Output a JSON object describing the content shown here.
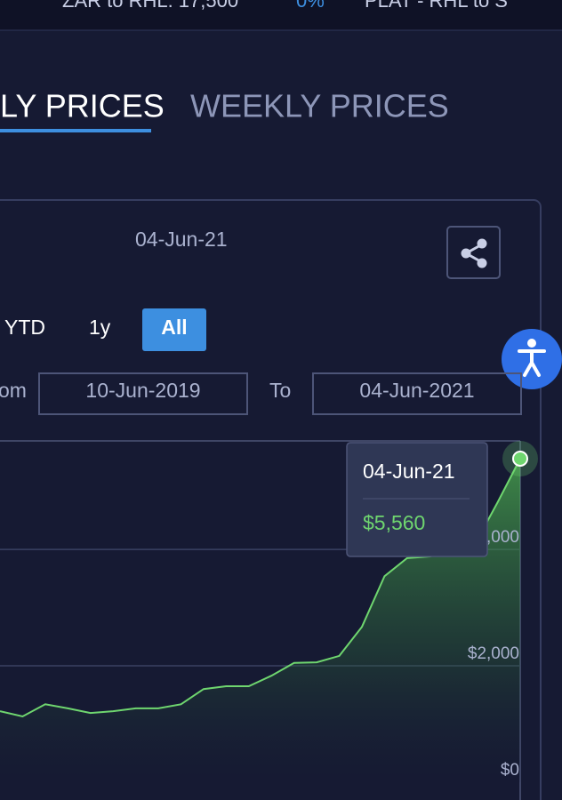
{
  "ticker": [
    "ZAR to RHL: 17,500",
    "0%",
    "PLAT - RHL to S"
  ],
  "tabs": [
    "LY PRICES",
    "WEEKLY PRICES"
  ],
  "panel": {
    "date": "04-Jun-21",
    "ranges": [
      "YTD",
      "1y",
      "All"
    ],
    "from_label": "om",
    "from": "10-Jun-2019",
    "to_label": "To",
    "to": "04-Jun-2021"
  },
  "chart_data": {
    "type": "area",
    "color": "#6fd66f",
    "values": [
      1220,
      1130,
      1340,
      1270,
      1190,
      1220,
      1270,
      1270,
      1340,
      1600,
      1650,
      1650,
      1830,
      2050,
      2060,
      2170,
      2670,
      3540,
      3850,
      3880,
      3970,
      4090,
      4810,
      5560
    ],
    "ylim": [
      0,
      5850
    ],
    "yticks": [
      {
        "value": 0,
        "label": "$0"
      },
      {
        "value": 2000,
        "label": "$2,000"
      },
      {
        "value": 4000,
        "label": "$4,000"
      }
    ],
    "grid": true,
    "tooltip": {
      "date": "04-Jun-21",
      "label": "$5,560"
    }
  }
}
